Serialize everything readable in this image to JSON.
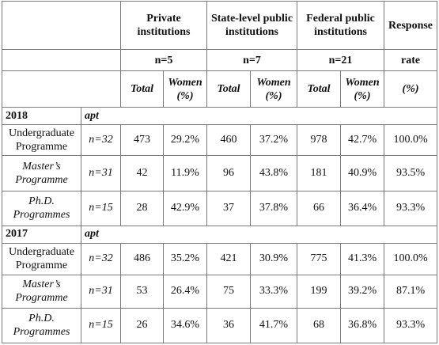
{
  "header": {
    "groups": [
      "Private institutions",
      "State-level public institutions",
      "Federal public institutions"
    ],
    "response_label": "Response",
    "group_sizes": [
      "n=5",
      "n=7",
      "n=21"
    ],
    "rate_label": "rate",
    "total_label": "Total",
    "women_label": "Women",
    "women_unit": "(%)",
    "rate_unit": "(%)"
  },
  "sections": [
    {
      "year": "2018",
      "apt": "apt",
      "rows": [
        {
          "label_line1": "Undergraduate",
          "label_line2": "Programme",
          "italic": false,
          "n": "n=32",
          "values": [
            "473",
            "29.2%",
            "460",
            "37.2%",
            "978",
            "42.7%",
            "100.0%"
          ]
        },
        {
          "label_line1": "Master’s",
          "label_line2": "Programme",
          "italic": true,
          "n": "n=31",
          "values": [
            "42",
            "11.9%",
            "96",
            "43.8%",
            "181",
            "40.9%",
            "93.5%"
          ]
        },
        {
          "label_line1": "Ph.D.",
          "label_line2": "Programmes",
          "italic": true,
          "n": "n=15",
          "values": [
            "28",
            "42.9%",
            "37",
            "37.8%",
            "66",
            "36.4%",
            "93.3%"
          ]
        }
      ]
    },
    {
      "year": "2017",
      "apt": "apt",
      "rows": [
        {
          "label_line1": "Undergraduate",
          "label_line2": "Programme",
          "italic": false,
          "n": "n=32",
          "values": [
            "486",
            "35.2%",
            "421",
            "30.9%",
            "775",
            "41.3%",
            "100.0%"
          ]
        },
        {
          "label_line1": "Master’s",
          "label_line2": "Programme",
          "italic": true,
          "n": "n=31",
          "values": [
            "53",
            "26.4%",
            "75",
            "33.3%",
            "199",
            "39.2%",
            "87.1%"
          ]
        },
        {
          "label_line1": "Ph.D.",
          "label_line2": "Programmes",
          "italic": true,
          "n": "n=15",
          "values": [
            "26",
            "34.6%",
            "36",
            "41.7%",
            "68",
            "36.8%",
            "93.3%"
          ]
        }
      ]
    }
  ]
}
